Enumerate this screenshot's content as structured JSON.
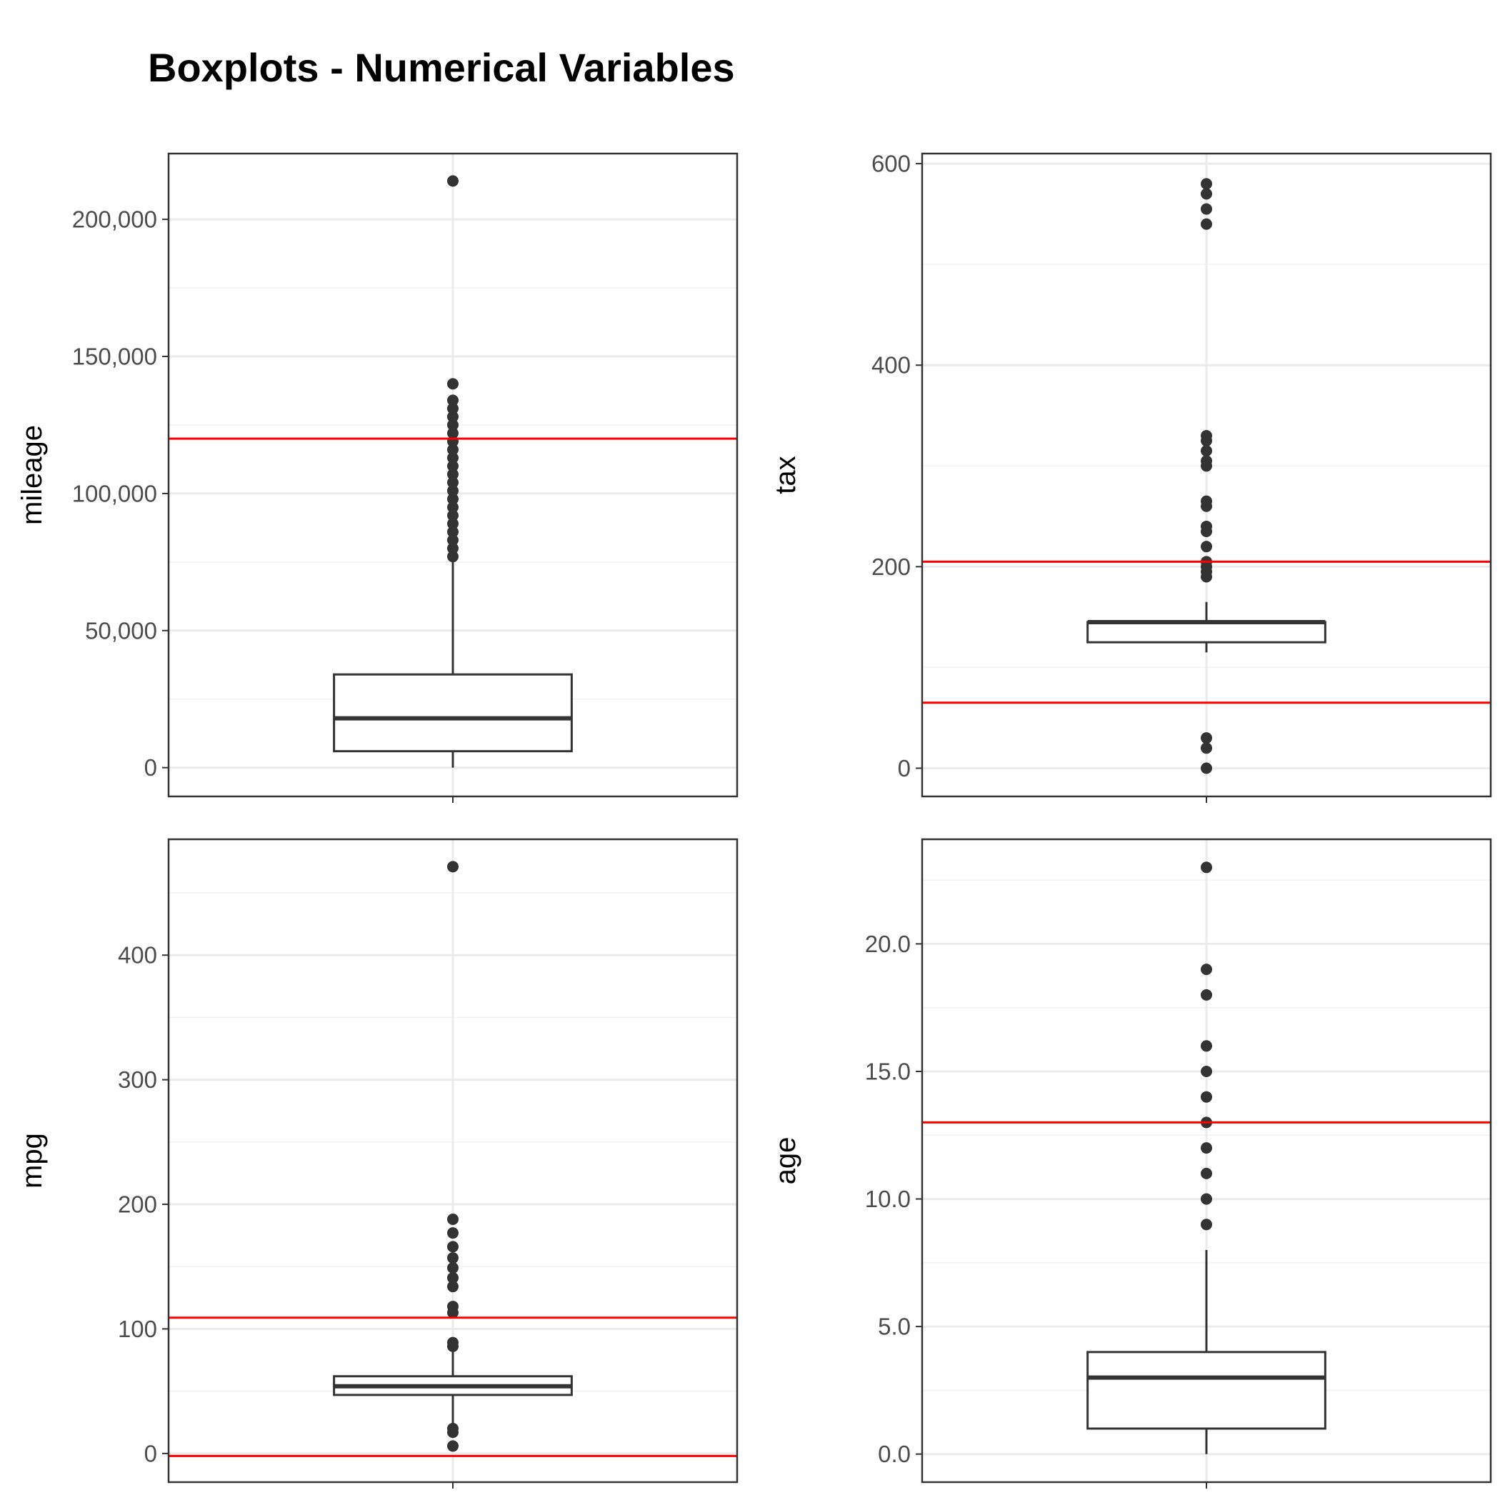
{
  "title": "Boxplots - Numerical Variables",
  "chart_data": [
    {
      "type": "box",
      "ylabel": "mileage",
      "ylim": [
        -10500,
        224000
      ],
      "yticks": [
        0,
        50000,
        100000,
        150000,
        200000
      ],
      "ytick_labels": [
        "0",
        "50,000",
        "100,000",
        "150,000",
        "200,000"
      ],
      "grid": true,
      "box": {
        "min": 0,
        "q1": 6000,
        "median": 18000,
        "q3": 34000,
        "max": 76000
      },
      "outliers": [
        77000,
        80000,
        83000,
        86000,
        89000,
        92000,
        95000,
        98000,
        101000,
        104000,
        107000,
        110000,
        113000,
        116000,
        119000,
        122000,
        125000,
        128000,
        131000,
        134000,
        140000,
        214000
      ],
      "reference_lines": [
        {
          "y": 120000,
          "color": "#ff0000"
        }
      ]
    },
    {
      "type": "box",
      "ylabel": "tax",
      "ylim": [
        -28,
        610
      ],
      "yticks": [
        0,
        200,
        400,
        600
      ],
      "ytick_labels": [
        "0",
        "200",
        "400",
        "600"
      ],
      "grid": true,
      "box": {
        "min": 115,
        "q1": 125,
        "median": 145,
        "q3": 145,
        "max": 165
      },
      "outliers": [
        0,
        20,
        30,
        190,
        195,
        200,
        205,
        220,
        235,
        240,
        260,
        265,
        300,
        305,
        315,
        325,
        330,
        540,
        555,
        570,
        580
      ],
      "reference_lines": [
        {
          "y": 205,
          "color": "#ff0000"
        },
        {
          "y": 65,
          "color": "#ff0000"
        }
      ]
    },
    {
      "type": "box",
      "ylabel": "mpg",
      "ylim": [
        -23,
        493
      ],
      "yticks": [
        0,
        100,
        200,
        300,
        400
      ],
      "ytick_labels": [
        "0",
        "100",
        "200",
        "300",
        "400"
      ],
      "grid": true,
      "box": {
        "min": 24,
        "q1": 47,
        "median": 54,
        "q3": 62,
        "max": 83
      },
      "outliers": [
        6,
        17,
        20,
        86,
        89,
        113,
        118,
        134,
        141,
        149,
        157,
        166,
        177,
        188,
        471
      ],
      "reference_lines": [
        {
          "y": 109,
          "color": "#ff0000"
        },
        {
          "y": -2,
          "color": "#ff0000"
        }
      ]
    },
    {
      "type": "box",
      "ylabel": "age",
      "ylim": [
        -1.1,
        24.1
      ],
      "yticks": [
        0,
        5,
        10,
        15,
        20
      ],
      "ytick_labels": [
        "0.0",
        "5.0",
        "10.0",
        "15.0",
        "20.0"
      ],
      "grid": true,
      "box": {
        "min": 0,
        "q1": 1,
        "median": 3,
        "q3": 4,
        "max": 8
      },
      "outliers": [
        9,
        10,
        11,
        12,
        13,
        14,
        15,
        16,
        18,
        19,
        23
      ],
      "reference_lines": [
        {
          "y": 13,
          "color": "#ff0000"
        }
      ]
    }
  ]
}
